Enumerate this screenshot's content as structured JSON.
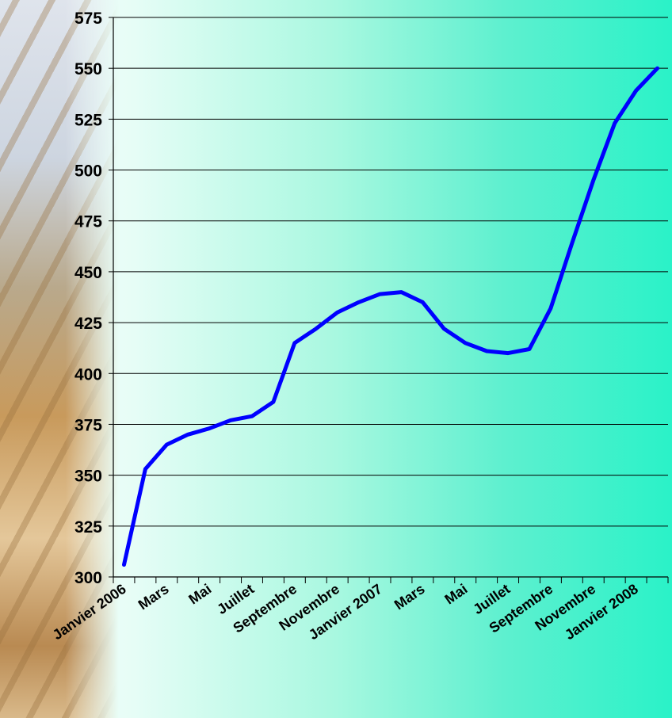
{
  "chart_data": {
    "type": "line",
    "title": "",
    "xlabel": "",
    "ylabel": "",
    "ylim": [
      300,
      575
    ],
    "yticks": [
      300,
      325,
      350,
      375,
      400,
      425,
      450,
      475,
      500,
      525,
      550,
      575
    ],
    "grid": true,
    "x_tick_labels": [
      "Janvier 2006",
      "Mars",
      "Mai",
      "Juillet",
      "Septembre",
      "Novembre",
      "Janvier 2007",
      "Mars",
      "Mai",
      "Juillet",
      "Septembre",
      "Novembre",
      "Janvier 2008"
    ],
    "x": [
      "2006-01",
      "2006-02",
      "2006-03",
      "2006-04",
      "2006-05",
      "2006-06",
      "2006-07",
      "2006-08",
      "2006-09",
      "2006-10",
      "2006-11",
      "2006-12",
      "2007-01",
      "2007-02",
      "2007-03",
      "2007-04",
      "2007-05",
      "2007-06",
      "2007-07",
      "2007-08",
      "2007-09",
      "2007-10",
      "2007-11",
      "2007-12",
      "2008-01",
      "2008-02"
    ],
    "series": [
      {
        "color": "#0000ff",
        "values": [
          306,
          353,
          365,
          370,
          373,
          377,
          379,
          386,
          415,
          422,
          430,
          435,
          439,
          440,
          435,
          422,
          415,
          411,
          410,
          412,
          432,
          464,
          495,
          523,
          539,
          550
        ]
      }
    ]
  }
}
